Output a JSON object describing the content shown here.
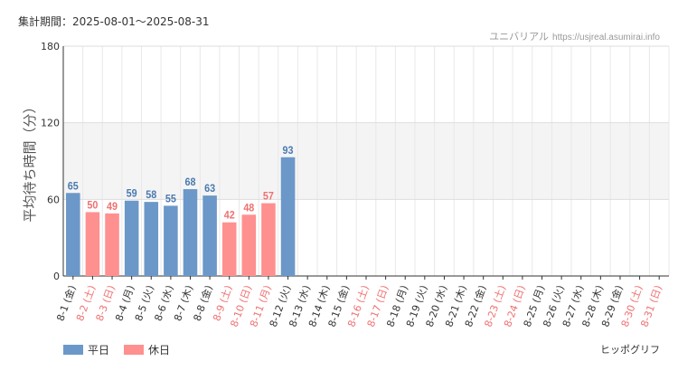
{
  "header": {
    "period": "集計期間：2025-08-01～2025-08-31",
    "source_name": "ユニバリアル",
    "source_url": "https://usjreal.asumirai.info"
  },
  "footer": {
    "note": "ヒッポグリフ"
  },
  "colors": {
    "weekday": "#6b98c8",
    "holiday": "#ff9090",
    "weekday_label": "#4a7ab0",
    "holiday_label": "#f07070",
    "weekday_tick": "#333333",
    "holiday_tick": "#f07070"
  },
  "chart_data": {
    "type": "bar",
    "ylabel": "平均待ち時間（分）",
    "ylim": [
      0,
      180
    ],
    "yticks": [
      0,
      60,
      120,
      180
    ],
    "grid": true,
    "legend_position": "bottom-left",
    "series": [
      {
        "name": "平日",
        "color": "#6b98c8"
      },
      {
        "name": "休日",
        "color": "#ff9090"
      }
    ],
    "categories": [
      "8-1 (金)",
      "8-2 (土)",
      "8-3 (日)",
      "8-4 (月)",
      "8-5 (火)",
      "8-6 (水)",
      "8-7 (木)",
      "8-8 (金)",
      "8-9 (土)",
      "8-10 (日)",
      "8-11 (月)",
      "8-12 (火)",
      "8-13 (水)",
      "8-14 (木)",
      "8-15 (金)",
      "8-16 (土)",
      "8-17 (日)",
      "8-18 (月)",
      "8-19 (火)",
      "8-20 (水)",
      "8-21 (木)",
      "8-22 (金)",
      "8-23 (土)",
      "8-24 (日)",
      "8-25 (月)",
      "8-26 (火)",
      "8-27 (水)",
      "8-28 (木)",
      "8-29 (金)",
      "8-30 (土)",
      "8-31 (日)"
    ],
    "values": [
      65,
      50,
      49,
      59,
      58,
      55,
      68,
      63,
      42,
      48,
      57,
      93,
      null,
      null,
      null,
      null,
      null,
      null,
      null,
      null,
      null,
      null,
      null,
      null,
      null,
      null,
      null,
      null,
      null,
      null,
      null
    ],
    "day_type": [
      "平日",
      "休日",
      "休日",
      "平日",
      "平日",
      "平日",
      "平日",
      "平日",
      "休日",
      "休日",
      "休日",
      "平日",
      "平日",
      "平日",
      "平日",
      "休日",
      "休日",
      "平日",
      "平日",
      "平日",
      "平日",
      "平日",
      "休日",
      "休日",
      "平日",
      "平日",
      "平日",
      "平日",
      "平日",
      "休日",
      "休日"
    ]
  }
}
